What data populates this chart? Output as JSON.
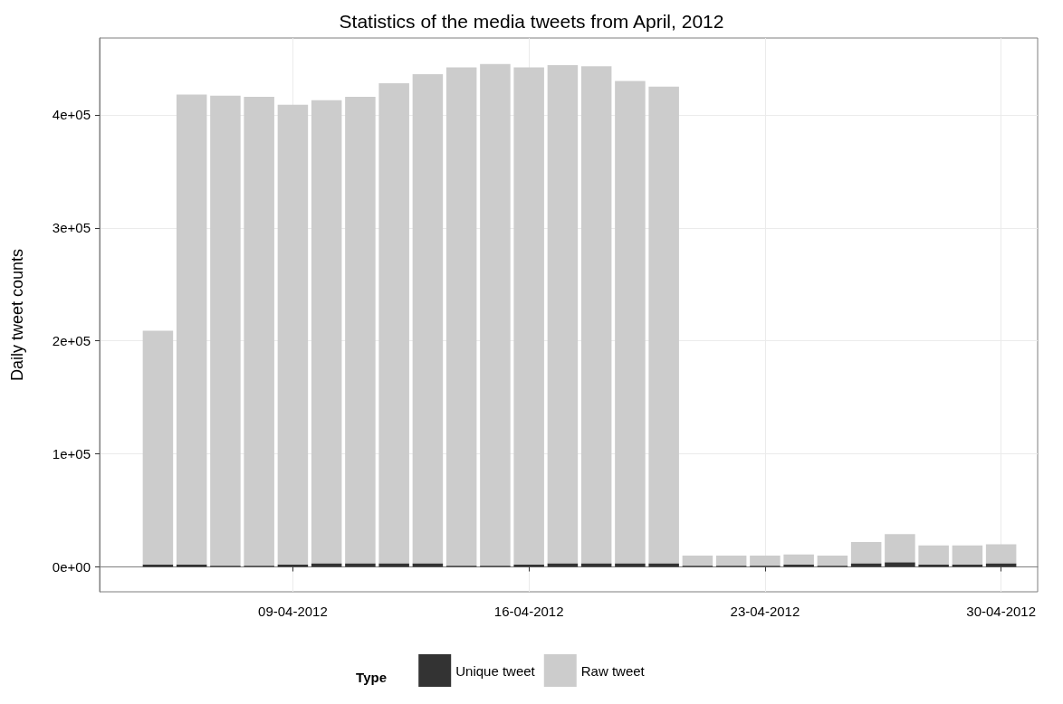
{
  "chart_data": {
    "type": "bar",
    "stacked": true,
    "title": "Statistics of the media tweets from April, 2012",
    "ylabel": "Daily tweet counts",
    "legend_title": "Type",
    "legend": "bottom",
    "grid": true,
    "x": [
      "2012-04-05",
      "2012-04-06",
      "2012-04-07",
      "2012-04-08",
      "2012-04-09",
      "2012-04-10",
      "2012-04-11",
      "2012-04-12",
      "2012-04-13",
      "2012-04-14",
      "2012-04-15",
      "2012-04-16",
      "2012-04-17",
      "2012-04-18",
      "2012-04-19",
      "2012-04-20",
      "2012-04-21",
      "2012-04-22",
      "2012-04-23",
      "2012-04-24",
      "2012-04-25",
      "2012-04-26",
      "2012-04-27",
      "2012-04-28",
      "2012-04-29",
      "2012-04-30"
    ],
    "series": [
      {
        "name": "Unique tweet",
        "color": "#333333",
        "values": [
          2000,
          2000,
          1000,
          1000,
          2000,
          3000,
          3000,
          3000,
          3000,
          1000,
          1000,
          2000,
          3000,
          3000,
          3000,
          3000,
          1000,
          1000,
          1000,
          2000,
          1000,
          3000,
          4000,
          2000,
          2000,
          3000
        ]
      },
      {
        "name": "Raw tweet",
        "color": "#cccccc",
        "values": [
          207000,
          416000,
          416000,
          415000,
          407000,
          410000,
          413000,
          425000,
          433000,
          441000,
          444000,
          440000,
          441000,
          440000,
          427000,
          422000,
          9000,
          9000,
          9000,
          9000,
          9000,
          19000,
          25000,
          17000,
          17000,
          17000
        ]
      }
    ],
    "xlim": [
      "2012-04-03T06:30",
      "2012-05-01T02:00"
    ],
    "xticks": [
      {
        "value": "2012-04-09",
        "label": "09-04-2012"
      },
      {
        "value": "2012-04-16",
        "label": "16-04-2012"
      },
      {
        "value": "2012-04-23",
        "label": "23-04-2012"
      },
      {
        "value": "2012-04-30",
        "label": "30-04-2012"
      }
    ],
    "ylim": [
      -22000,
      468000
    ],
    "yticks": [
      {
        "value": 0,
        "label": "0e+00"
      },
      {
        "value": 100000,
        "label": "1e+05"
      },
      {
        "value": 200000,
        "label": "2e+05"
      },
      {
        "value": 300000,
        "label": "3e+05"
      },
      {
        "value": 400000,
        "label": "4e+05"
      }
    ]
  }
}
